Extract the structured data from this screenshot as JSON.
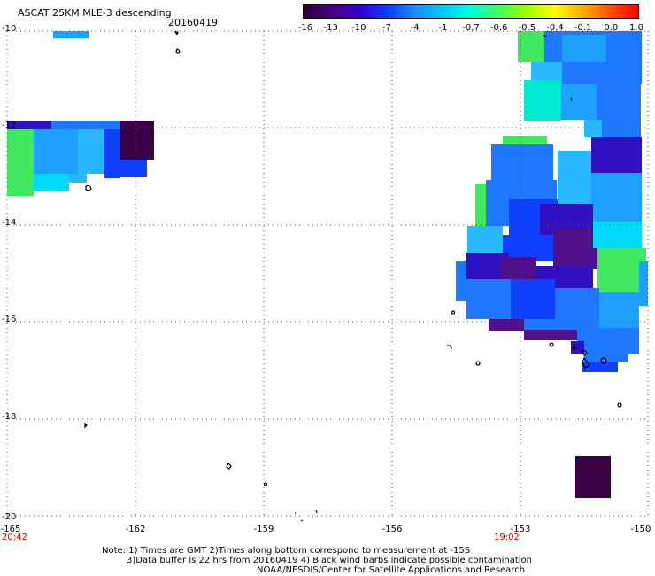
{
  "header": {
    "title": "ASCAT 25KM MLE-3 descending",
    "date": "20160419"
  },
  "colorbar": {
    "labels": [
      "-16",
      "-13",
      "-10",
      "-7",
      "-4",
      "-1",
      "-0.7",
      "-0.6",
      "-0.5",
      "-0.4",
      "-0.1",
      "0.0",
      "1.0"
    ],
    "colors": [
      "#2a0038",
      "#4b007a",
      "#3300d0",
      "#0a3cff",
      "#1e8cff",
      "#00c8ff",
      "#00ffd8",
      "#40ff60",
      "#a0ff00",
      "#ffff00",
      "#ffb000",
      "#ff5000",
      "#ff0000"
    ]
  },
  "axes": {
    "lat_labels": [
      "-10",
      "-12",
      "-14",
      "-16",
      "-18",
      "-20"
    ],
    "lon_labels": [
      "-165",
      "-162",
      "-159",
      "-156",
      "-153",
      "-150"
    ]
  },
  "times": {
    "left": "20:42",
    "right": "19:02"
  },
  "notes": {
    "line1": "Note: 1) Times are GMT 2)Times along bottom correspond to measurement at -15S",
    "line2": "3)Data buffer is 22 hrs from 20160419 4) Black wind barbs indicate possible contamination",
    "line3": "NOAA/NESDIS/Center for Satellite Applications and Research"
  },
  "palette": {
    "deep_purple": "#3a0048",
    "purple": "#50108a",
    "indigo": "#3010c0",
    "blue": "#1040ff",
    "mid_blue": "#1e78ff",
    "sky_blue": "#1ea0ff",
    "light_blue": "#28b8ff",
    "cyan": "#00d8ff",
    "aqua": "#00e8d0",
    "teal_green": "#00e890",
    "green": "#40e860"
  }
}
